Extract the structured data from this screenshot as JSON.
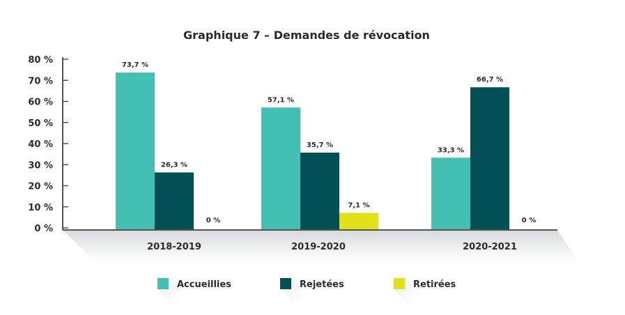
{
  "chart_data": {
    "type": "bar",
    "title": "Graphique 7 – Demandes de révocation",
    "categories": [
      "2018-2019",
      "2019-2020",
      "2020-2021"
    ],
    "series": [
      {
        "name": "Accueillies",
        "color": "#43bfb4",
        "values": [
          73.7,
          57.1,
          33.3
        ],
        "labels": [
          "73,7 %",
          "57,1 %",
          "33,3 %"
        ]
      },
      {
        "name": "Rejetées",
        "color": "#024f56",
        "values": [
          26.3,
          35.7,
          66.7
        ],
        "labels": [
          "26,3 %",
          "35,7 %",
          "66,7 %"
        ]
      },
      {
        "name": "Retirées",
        "color": "#e2e01a",
        "values": [
          0,
          7.1,
          0
        ],
        "labels": [
          "0 %",
          "7,1 %",
          "0 %"
        ]
      }
    ],
    "yticks": [
      "0 %",
      "10 %",
      "20 %",
      "30 %",
      "40 %",
      "50 %",
      "60 %",
      "70 %",
      "80 %"
    ],
    "ylim": [
      0,
      80
    ],
    "grid": false,
    "legend": "bottom"
  }
}
